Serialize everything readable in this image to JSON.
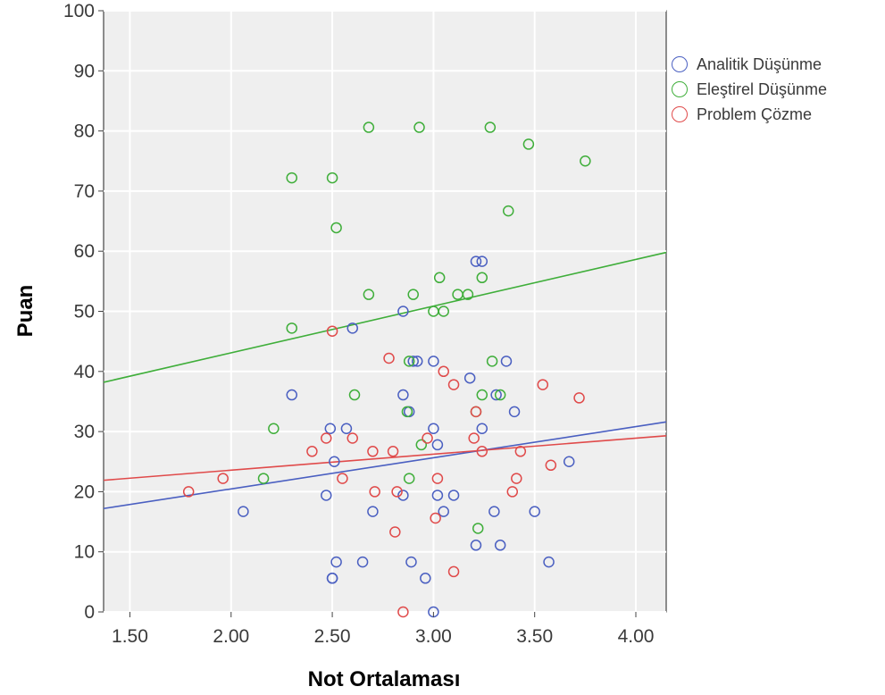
{
  "chart_data": {
    "type": "scatter",
    "title": "",
    "xlabel": "Not Ortalaması",
    "ylabel": "Puan",
    "xlim": [
      1.37,
      4.15
    ],
    "ylim": [
      0,
      100
    ],
    "xticks": [
      "1.50",
      "2.00",
      "2.50",
      "3.00",
      "3.50",
      "4.00"
    ],
    "yticks": [
      "0",
      "10",
      "20",
      "30",
      "40",
      "50",
      "60",
      "70",
      "80",
      "90",
      "100"
    ],
    "grid": true,
    "legend_position": "top-right outside",
    "series": [
      {
        "name": "Analitik Düşünme",
        "color": "#4a5fc1",
        "fit_line": [
          [
            1.37,
            17.2
          ],
          [
            4.15,
            31.6
          ]
        ],
        "points": [
          [
            2.06,
            16.7
          ],
          [
            2.3,
            36.1
          ],
          [
            2.47,
            19.4
          ],
          [
            2.49,
            30.5
          ],
          [
            2.5,
            5.6
          ],
          [
            2.5,
            5.6
          ],
          [
            2.51,
            25.0
          ],
          [
            2.52,
            8.3
          ],
          [
            2.57,
            30.5
          ],
          [
            2.6,
            47.2
          ],
          [
            2.65,
            8.3
          ],
          [
            2.7,
            16.7
          ],
          [
            2.85,
            50.0
          ],
          [
            2.85,
            36.1
          ],
          [
            2.85,
            19.4
          ],
          [
            2.88,
            33.3
          ],
          [
            2.89,
            8.3
          ],
          [
            2.9,
            41.7
          ],
          [
            2.92,
            41.7
          ],
          [
            2.96,
            5.6
          ],
          [
            3.0,
            41.7
          ],
          [
            3.0,
            30.5
          ],
          [
            3.0,
            0.0
          ],
          [
            3.02,
            27.8
          ],
          [
            3.02,
            19.4
          ],
          [
            3.05,
            16.7
          ],
          [
            3.1,
            19.4
          ],
          [
            3.18,
            38.9
          ],
          [
            3.21,
            58.3
          ],
          [
            3.21,
            11.1
          ],
          [
            3.24,
            58.3
          ],
          [
            3.24,
            30.5
          ],
          [
            3.3,
            16.7
          ],
          [
            3.31,
            36.1
          ],
          [
            3.33,
            11.1
          ],
          [
            3.36,
            41.7
          ],
          [
            3.4,
            33.3
          ],
          [
            3.5,
            16.7
          ],
          [
            3.57,
            8.3
          ],
          [
            3.67,
            25.0
          ]
        ]
      },
      {
        "name": "Eleştirel Düşünme",
        "color": "#3fae3a",
        "fit_line": [
          [
            1.37,
            38.2
          ],
          [
            4.15,
            59.8
          ]
        ],
        "points": [
          [
            2.16,
            22.2
          ],
          [
            2.21,
            30.5
          ],
          [
            2.3,
            72.2
          ],
          [
            2.3,
            47.2
          ],
          [
            2.5,
            72.2
          ],
          [
            2.52,
            63.9
          ],
          [
            2.61,
            36.1
          ],
          [
            2.68,
            52.8
          ],
          [
            2.68,
            80.6
          ],
          [
            2.87,
            33.3
          ],
          [
            2.88,
            41.7
          ],
          [
            2.88,
            22.2
          ],
          [
            2.9,
            52.8
          ],
          [
            2.93,
            80.6
          ],
          [
            2.94,
            27.8
          ],
          [
            3.0,
            50.0
          ],
          [
            3.03,
            55.6
          ],
          [
            3.05,
            50.0
          ],
          [
            3.12,
            52.8
          ],
          [
            3.17,
            52.8
          ],
          [
            3.21,
            33.3
          ],
          [
            3.22,
            13.9
          ],
          [
            3.24,
            55.6
          ],
          [
            3.24,
            36.1
          ],
          [
            3.28,
            80.6
          ],
          [
            3.29,
            41.7
          ],
          [
            3.33,
            36.1
          ],
          [
            3.37,
            66.7
          ],
          [
            3.47,
            77.8
          ],
          [
            3.75,
            75.0
          ]
        ]
      },
      {
        "name": "Problem Çözme",
        "color": "#e04a4a",
        "fit_line": [
          [
            1.37,
            21.9
          ],
          [
            4.15,
            29.3
          ]
        ],
        "points": [
          [
            1.79,
            20.0
          ],
          [
            1.96,
            22.2
          ],
          [
            2.4,
            26.7
          ],
          [
            2.47,
            28.9
          ],
          [
            2.5,
            46.7
          ],
          [
            2.55,
            22.2
          ],
          [
            2.6,
            28.9
          ],
          [
            2.7,
            26.7
          ],
          [
            2.71,
            20.0
          ],
          [
            2.78,
            42.2
          ],
          [
            2.8,
            26.7
          ],
          [
            2.81,
            13.3
          ],
          [
            2.82,
            20.0
          ],
          [
            2.85,
            0.0
          ],
          [
            2.97,
            28.9
          ],
          [
            3.01,
            15.6
          ],
          [
            3.02,
            22.2
          ],
          [
            3.05,
            40.0
          ],
          [
            3.1,
            37.8
          ],
          [
            3.1,
            6.7
          ],
          [
            3.2,
            28.9
          ],
          [
            3.21,
            33.3
          ],
          [
            3.24,
            26.7
          ],
          [
            3.39,
            20.0
          ],
          [
            3.41,
            22.2
          ],
          [
            3.43,
            26.7
          ],
          [
            3.54,
            37.8
          ],
          [
            3.58,
            24.4
          ],
          [
            3.72,
            35.6
          ]
        ]
      }
    ]
  }
}
